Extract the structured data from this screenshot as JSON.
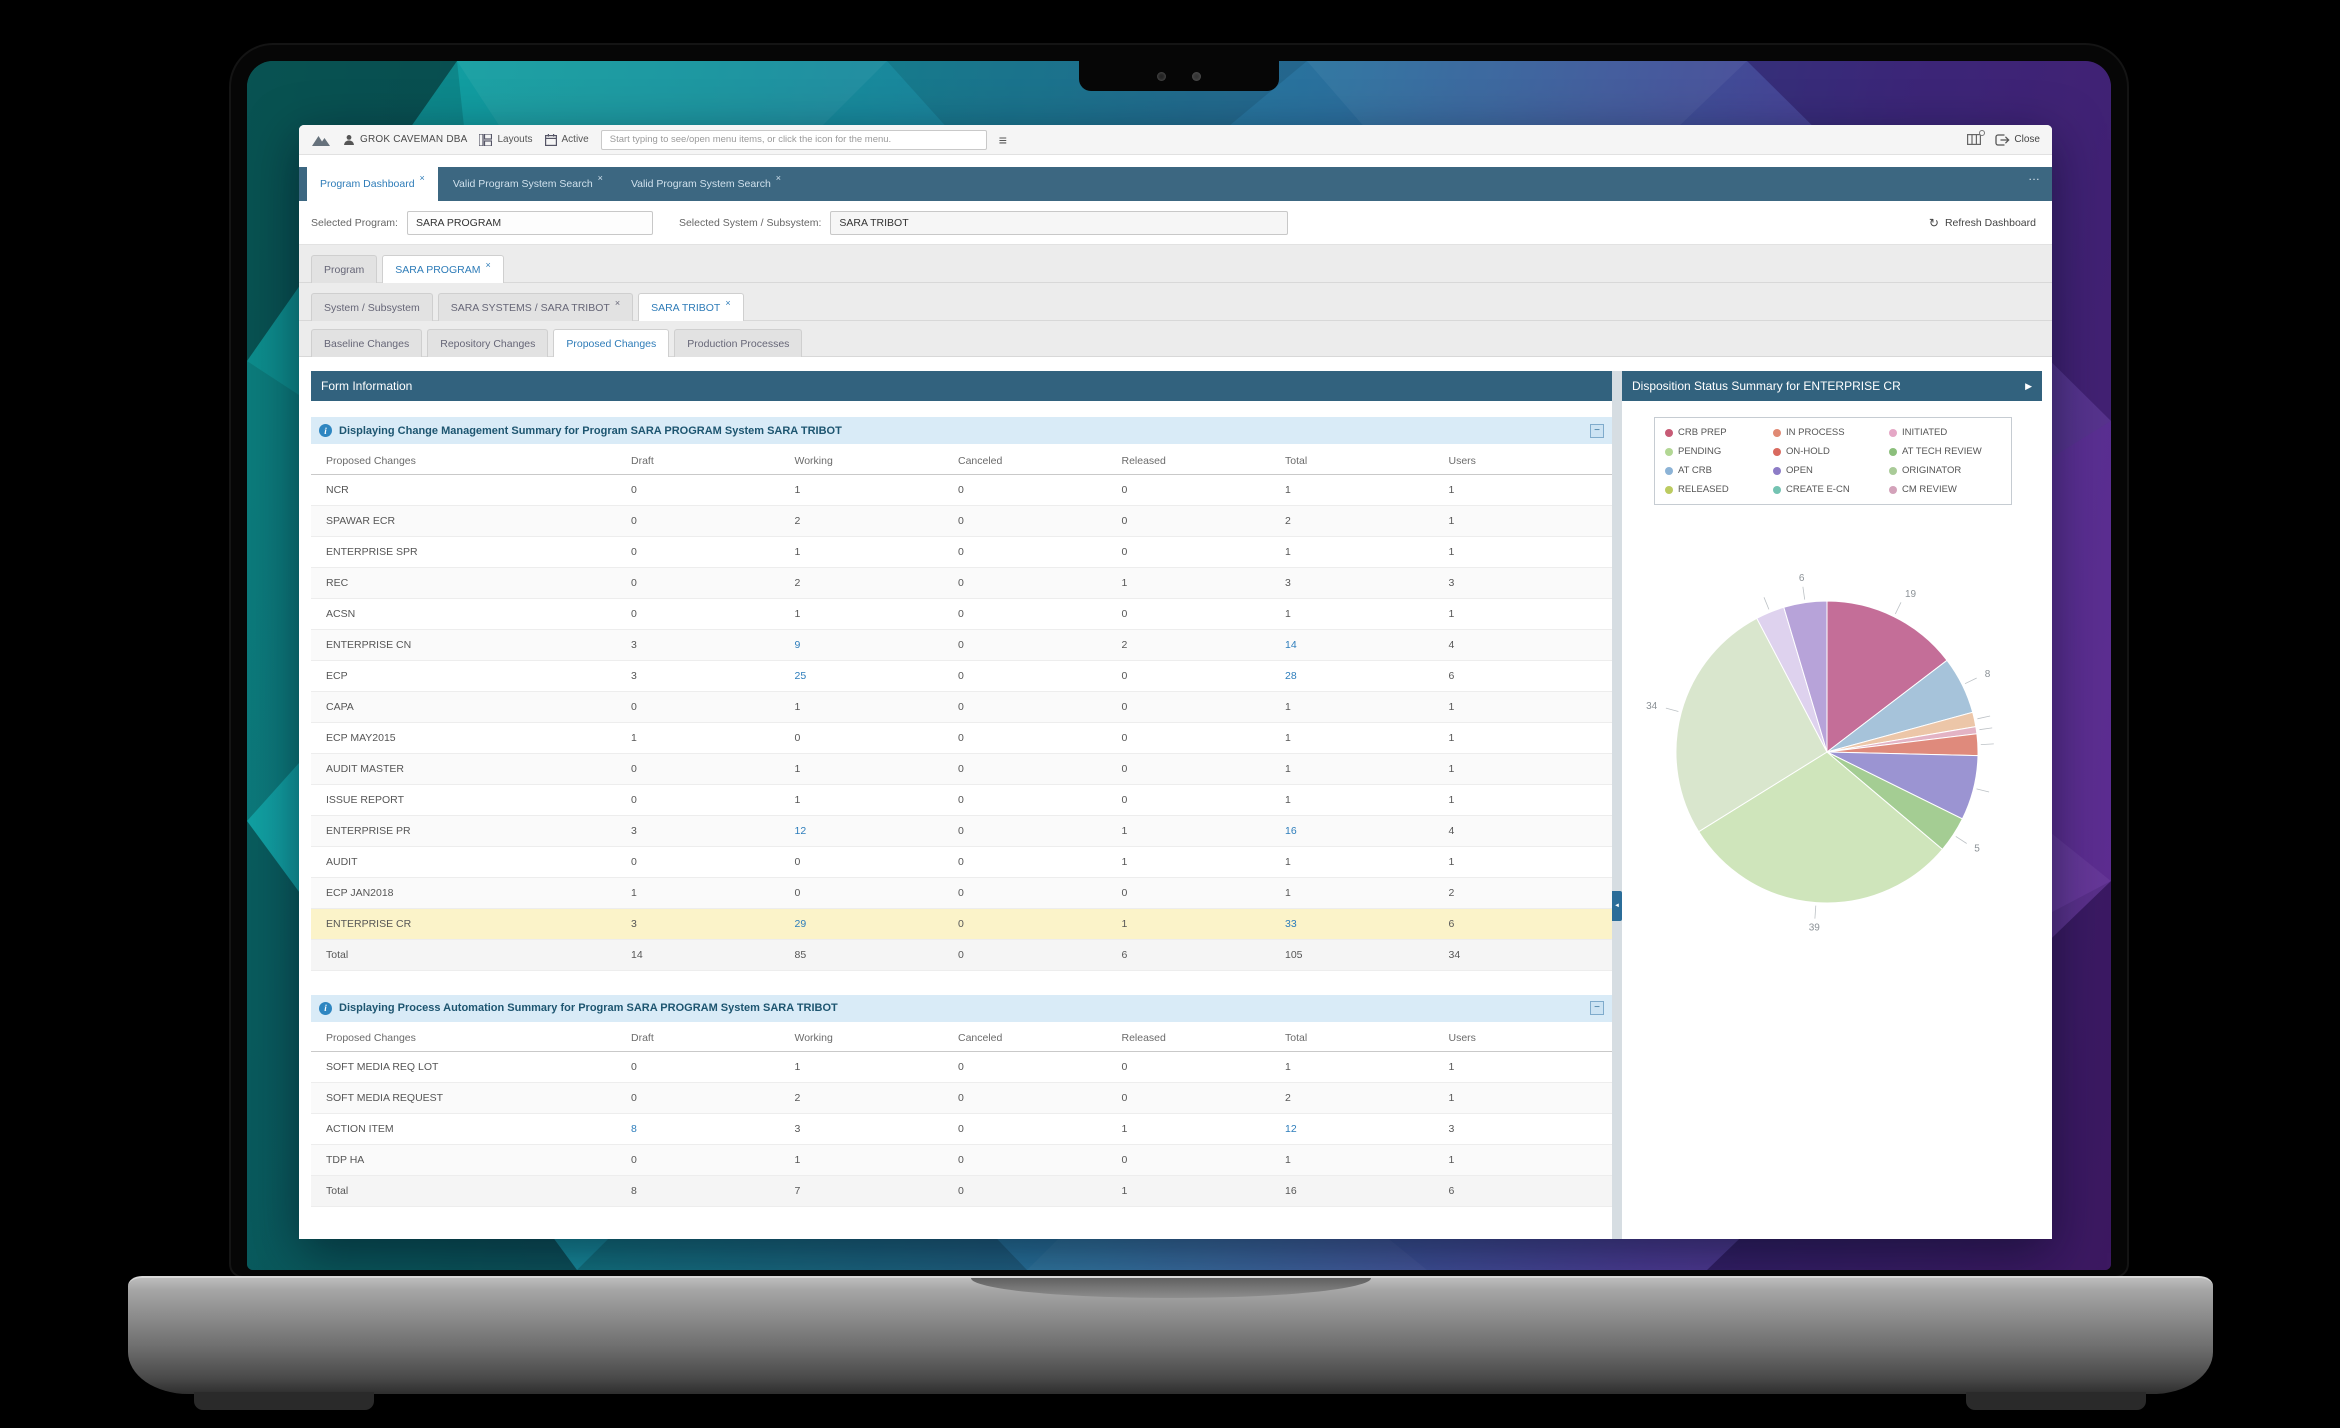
{
  "icons": {
    "menu": "≡",
    "overflow": "…",
    "close_tab": "×",
    "refresh": "↻",
    "info": "i",
    "collapse": "−",
    "arrow_right": "▶",
    "collapse_left": "◄"
  },
  "toolbar": {
    "user": "GROK CAVEMAN DBA",
    "layouts_label": "Layouts",
    "active_label": "Active",
    "search_placeholder": "Start typing to see/open menu items, or click the icon for the menu.",
    "close_label": "Close"
  },
  "main_tabs": [
    {
      "label": "Program Dashboard",
      "active": true
    },
    {
      "label": "Valid Program System Search",
      "active": false
    },
    {
      "label": "Valid Program System Search",
      "active": false
    }
  ],
  "selection": {
    "program_label": "Selected Program:",
    "program_value": "SARA PROGRAM",
    "system_label": "Selected System / Subsystem:",
    "system_value": "SARA TRIBOT",
    "refresh_label": "Refresh Dashboard"
  },
  "program_tabs": [
    {
      "label": "Program",
      "active": false
    },
    {
      "label": "SARA PROGRAM",
      "active": true
    }
  ],
  "system_tabs": [
    {
      "label": "System / Subsystem",
      "active": false
    },
    {
      "label": "SARA SYSTEMS / SARA TRIBOT",
      "active": false
    },
    {
      "label": "SARA TRIBOT",
      "active": true
    }
  ],
  "change_tabs": [
    {
      "label": "Baseline Changes",
      "active": false
    },
    {
      "label": "Repository Changes",
      "active": false
    },
    {
      "label": "Proposed Changes",
      "active": true
    },
    {
      "label": "Production Processes",
      "active": false
    }
  ],
  "form_info_title": "Form Information",
  "right_panel": {
    "title": "Disposition Status Summary for ENTERPRISE CR"
  },
  "tables": [
    {
      "title": "Displaying Change Management Summary for Program SARA PROGRAM System SARA TRIBOT",
      "columns": [
        "Proposed Changes",
        "Draft",
        "Working",
        "Canceled",
        "Released",
        "Total",
        "Users"
      ],
      "rows": [
        {
          "label": "NCR",
          "values": [
            "0",
            "1",
            "0",
            "0",
            "1",
            "1"
          ],
          "links": []
        },
        {
          "label": "SPAWAR ECR",
          "values": [
            "0",
            "2",
            "0",
            "0",
            "2",
            "1"
          ],
          "links": []
        },
        {
          "label": "ENTERPRISE SPR",
          "values": [
            "0",
            "1",
            "0",
            "0",
            "1",
            "1"
          ],
          "links": []
        },
        {
          "label": "REC",
          "values": [
            "0",
            "2",
            "0",
            "1",
            "3",
            "3"
          ],
          "links": []
        },
        {
          "label": "ACSN",
          "values": [
            "0",
            "1",
            "0",
            "0",
            "1",
            "1"
          ],
          "links": []
        },
        {
          "label": "ENTERPRISE CN",
          "values": [
            "3",
            "9",
            "0",
            "2",
            "14",
            "4"
          ],
          "links": [
            1,
            4
          ]
        },
        {
          "label": "ECP",
          "values": [
            "3",
            "25",
            "0",
            "0",
            "28",
            "6"
          ],
          "links": [
            1,
            4
          ]
        },
        {
          "label": "CAPA",
          "values": [
            "0",
            "1",
            "0",
            "0",
            "1",
            "1"
          ],
          "links": []
        },
        {
          "label": "ECP MAY2015",
          "values": [
            "1",
            "0",
            "0",
            "0",
            "1",
            "1"
          ],
          "links": []
        },
        {
          "label": "AUDIT MASTER",
          "values": [
            "0",
            "1",
            "0",
            "0",
            "1",
            "1"
          ],
          "links": []
        },
        {
          "label": "ISSUE REPORT",
          "values": [
            "0",
            "1",
            "0",
            "0",
            "1",
            "1"
          ],
          "links": []
        },
        {
          "label": "ENTERPRISE PR",
          "values": [
            "3",
            "12",
            "0",
            "1",
            "16",
            "4"
          ],
          "links": [
            1,
            4
          ]
        },
        {
          "label": "AUDIT",
          "values": [
            "0",
            "0",
            "0",
            "1",
            "1",
            "1"
          ],
          "links": []
        },
        {
          "label": "ECP JAN2018",
          "values": [
            "1",
            "0",
            "0",
            "0",
            "1",
            "2"
          ],
          "links": []
        },
        {
          "label": "ENTERPRISE CR",
          "values": [
            "3",
            "29",
            "0",
            "1",
            "33",
            "6"
          ],
          "links": [
            1,
            4
          ],
          "highlight": true
        },
        {
          "label": "Total",
          "values": [
            "14",
            "85",
            "0",
            "6",
            "105",
            "34"
          ],
          "links": [],
          "total": true
        }
      ]
    },
    {
      "title": "Displaying Process Automation Summary for Program SARA PROGRAM System SARA TRIBOT",
      "columns": [
        "Proposed Changes",
        "Draft",
        "Working",
        "Canceled",
        "Released",
        "Total",
        "Users"
      ],
      "rows": [
        {
          "label": "SOFT MEDIA REQ LOT",
          "values": [
            "0",
            "1",
            "0",
            "0",
            "1",
            "1"
          ],
          "links": []
        },
        {
          "label": "SOFT MEDIA REQUEST",
          "values": [
            "0",
            "2",
            "0",
            "0",
            "2",
            "1"
          ],
          "links": []
        },
        {
          "label": "ACTION ITEM",
          "values": [
            "8",
            "3",
            "0",
            "1",
            "12",
            "3"
          ],
          "links": [
            0,
            4
          ]
        },
        {
          "label": "TDP HA",
          "values": [
            "0",
            "1",
            "0",
            "0",
            "1",
            "1"
          ],
          "links": []
        },
        {
          "label": "Total",
          "values": [
            "8",
            "7",
            "0",
            "1",
            "16",
            "6"
          ],
          "links": [],
          "total": true
        }
      ]
    }
  ],
  "legend": [
    {
      "label": "CRB PREP",
      "color": "#c75b76"
    },
    {
      "label": "IN PROCESS",
      "color": "#e08a74"
    },
    {
      "label": "INITIATED",
      "color": "#e5a7c6"
    },
    {
      "label": "PENDING",
      "color": "#b2d794"
    },
    {
      "label": "ON-HOLD",
      "color": "#d96a5f"
    },
    {
      "label": "AT TECH REVIEW",
      "color": "#8cbf7c"
    },
    {
      "label": "AT CRB",
      "color": "#8cb3d6"
    },
    {
      "label": "OPEN",
      "color": "#8d7cc6"
    },
    {
      "label": "ORIGINATOR",
      "color": "#a9cb98"
    },
    {
      "label": "RELEASED",
      "color": "#bccb61"
    },
    {
      "label": "CREATE E-CN",
      "color": "#74c3b2"
    },
    {
      "label": "CM REVIEW",
      "color": "#d3a2ba"
    }
  ],
  "chart_data": {
    "type": "pie",
    "title": "Disposition Status Summary for ENTERPRISE CR",
    "legend_entries": [
      "CRB PREP",
      "IN PROCESS",
      "INITIATED",
      "PENDING",
      "ON-HOLD",
      "AT TECH REVIEW",
      "AT CRB",
      "OPEN",
      "ORIGINATOR",
      "RELEASED",
      "CREATE E-CN",
      "CM REVIEW"
    ],
    "visible_value_labels": [
      6,
      19,
      8,
      5,
      39,
      34
    ],
    "slices": [
      {
        "name": "CRB PREP",
        "value": 19,
        "color": "#c46e98",
        "label": "19"
      },
      {
        "name": "AT CRB",
        "value": 8,
        "color": "#a6c3da",
        "label": "8"
      },
      {
        "name": "IN PROCESS",
        "value": 2,
        "color": "#ecc6a8",
        "label": ""
      },
      {
        "name": "CM REVIEW",
        "value": 1,
        "color": "#e3b3c4",
        "label": ""
      },
      {
        "name": "ON-HOLD",
        "value": 3,
        "color": "#df8a7c",
        "label": ""
      },
      {
        "name": "OPEN",
        "value": 9,
        "color": "#9b94d2",
        "label": ""
      },
      {
        "name": "AT TECH REVIEW",
        "value": 5,
        "color": "#a4cd93",
        "label": "5"
      },
      {
        "name": "PENDING",
        "value": 39,
        "color": "#cfe5bb",
        "label": "39"
      },
      {
        "name": "ORIGINATOR",
        "value": 34,
        "color": "#d9e6cd",
        "label": "34"
      },
      {
        "name": "INITIATED",
        "value": 4,
        "color": "#ded2ee",
        "label": ""
      },
      {
        "name": "RELEASED",
        "value": 6,
        "color": "#b7a3d9",
        "label": "6"
      }
    ]
  }
}
